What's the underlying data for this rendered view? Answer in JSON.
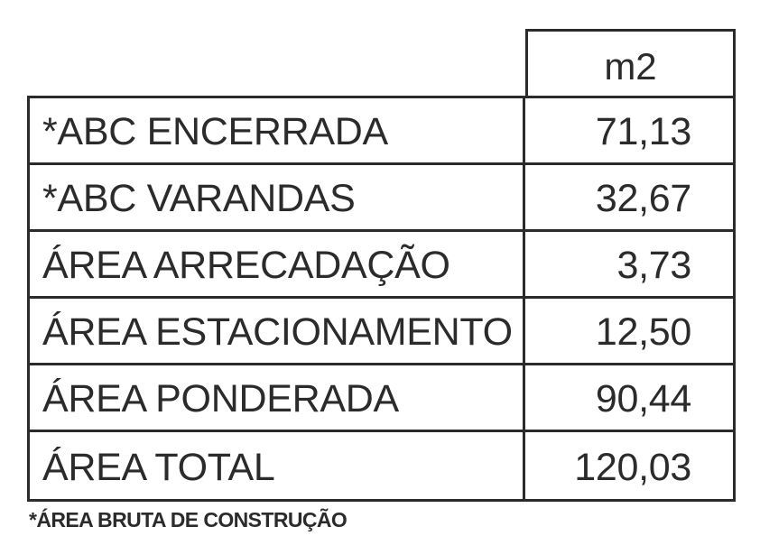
{
  "table": {
    "unit_header": "m2",
    "rows": [
      {
        "label": "*ABC ENCERRADA",
        "value": "71,13"
      },
      {
        "label": "*ABC VARANDAS",
        "value": "32,67"
      },
      {
        "label": "ÁREA ARRECADAÇÃO",
        "value": "3,73"
      },
      {
        "label": "ÁREA ESTACIONAMENTO",
        "value": "12,50"
      },
      {
        "label": "ÁREA PONDERADA",
        "value": "90,44"
      },
      {
        "label": "ÁREA TOTAL",
        "value": "120,03"
      }
    ]
  },
  "footnote": "*ÁREA BRUTA DE CONSTRUÇÃO",
  "colors": {
    "ink": "#2b2b2b",
    "paper": "#ffffff"
  }
}
